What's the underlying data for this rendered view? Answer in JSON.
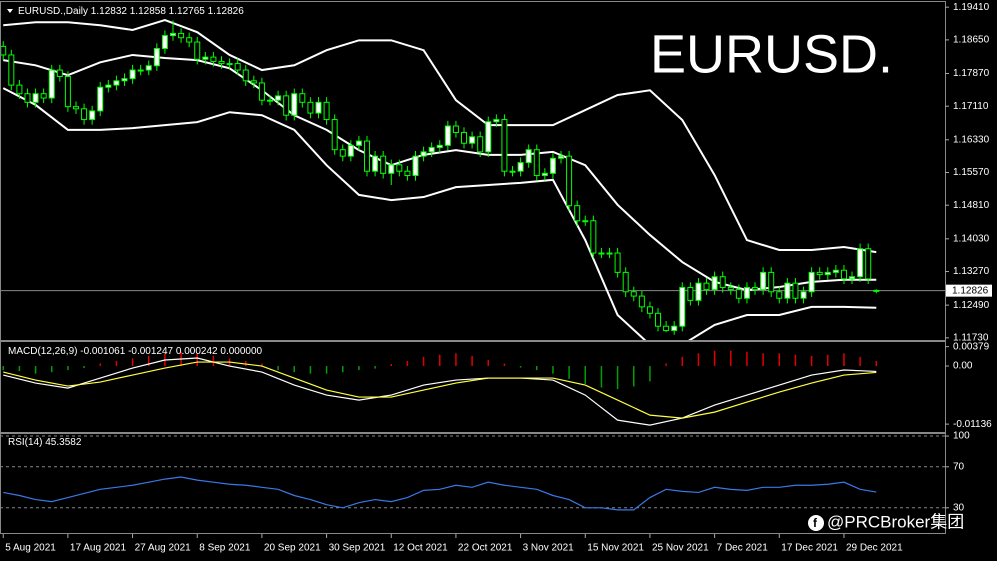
{
  "chart_data": [
    {
      "type": "candlestick",
      "title": "EURUSD.,Daily",
      "annotation": "EURUSD.",
      "xlim": [
        -0.4,
        116.5
      ],
      "ylim": [
        1.1168,
        1.1953
      ],
      "yticks": [
        {
          "value": 1.1941,
          "label": "1.19410"
        },
        {
          "value": 1.1865,
          "label": "1.18650"
        },
        {
          "value": 1.1787,
          "label": "1.17870"
        },
        {
          "value": 1.1711,
          "label": "1.17110"
        },
        {
          "value": 1.1633,
          "label": "1.16330"
        },
        {
          "value": 1.1557,
          "label": "1.15570"
        },
        {
          "value": 1.1481,
          "label": "1.14810"
        },
        {
          "value": 1.1403,
          "label": "1.14030"
        },
        {
          "value": 1.1327,
          "label": "1.13270"
        },
        {
          "value": 1.1249,
          "label": "1.12490"
        },
        {
          "value": 1.1173,
          "label": "1.11730"
        }
      ],
      "up_color": "#ffffff",
      "down_color": "#000000",
      "wick_color": "#00ff00",
      "open": [
        1.185,
        1.183,
        1.176,
        1.174,
        1.172,
        1.174,
        1.173,
        1.1795,
        1.178,
        1.171,
        1.1705,
        1.168,
        1.17,
        1.1755,
        1.176,
        1.177,
        1.1775,
        1.1795,
        1.1795,
        1.1805,
        1.1845,
        1.1875,
        1.188,
        1.187,
        1.186,
        1.182,
        1.1825,
        1.1815,
        1.181,
        1.181,
        1.1795,
        1.177,
        1.1765,
        1.1725,
        1.1725,
        1.1735,
        1.169,
        1.174,
        1.172,
        1.1695,
        1.172,
        1.168,
        1.161,
        1.1595,
        1.162,
        1.163,
        1.156,
        1.1595,
        1.1555,
        1.1575,
        1.156,
        1.155,
        1.1595,
        1.1605,
        1.1615,
        1.162,
        1.1665,
        1.165,
        1.1625,
        1.164,
        1.1605,
        1.1675,
        1.168,
        1.156,
        1.156,
        1.158,
        1.161,
        1.155,
        1.1555,
        1.159,
        1.1595,
        1.148,
        1.1445,
        1.1445,
        1.137,
        1.137,
        1.137,
        1.1325,
        1.128,
        1.127,
        1.1245,
        1.123,
        1.12,
        1.119,
        1.12,
        1.129,
        1.126,
        1.13,
        1.1285,
        1.1315,
        1.129,
        1.1285,
        1.1265,
        1.129,
        1.1285,
        1.1325,
        1.128,
        1.1265,
        1.13,
        1.1265,
        1.128,
        1.1325,
        1.132,
        1.1325,
        1.133,
        1.131,
        1.1315,
        1.138,
        1.12832
      ],
      "high": [
        1.1862,
        1.1842,
        1.1772,
        1.1752,
        1.1752,
        1.1752,
        1.1807,
        1.1807,
        1.1792,
        1.1722,
        1.1717,
        1.1712,
        1.1767,
        1.1772,
        1.1782,
        1.1787,
        1.1807,
        1.1807,
        1.1817,
        1.1857,
        1.1887,
        1.191,
        1.1892,
        1.1882,
        1.1872,
        1.1837,
        1.1837,
        1.1827,
        1.1822,
        1.1822,
        1.1807,
        1.1782,
        1.1777,
        1.1737,
        1.1747,
        1.1747,
        1.1752,
        1.1752,
        1.1732,
        1.1732,
        1.1732,
        1.1692,
        1.1622,
        1.1632,
        1.1642,
        1.1642,
        1.1607,
        1.1607,
        1.1587,
        1.1587,
        1.1572,
        1.1607,
        1.1617,
        1.1627,
        1.1632,
        1.1677,
        1.1677,
        1.1662,
        1.1652,
        1.1652,
        1.1687,
        1.1692,
        1.1692,
        1.1572,
        1.1592,
        1.1622,
        1.1622,
        1.1567,
        1.1602,
        1.1607,
        1.1607,
        1.1492,
        1.1457,
        1.1457,
        1.1382,
        1.1382,
        1.1382,
        1.1337,
        1.1292,
        1.1282,
        1.1257,
        1.1242,
        1.1212,
        1.1212,
        1.1302,
        1.1302,
        1.1312,
        1.1312,
        1.1327,
        1.1327,
        1.1302,
        1.1297,
        1.1302,
        1.1302,
        1.1337,
        1.1337,
        1.1292,
        1.1312,
        1.1312,
        1.1292,
        1.1337,
        1.1337,
        1.1337,
        1.1342,
        1.1342,
        1.1327,
        1.1392,
        1.1392,
        1.12858
      ],
      "low": [
        1.1818,
        1.1748,
        1.1728,
        1.1708,
        1.1708,
        1.1718,
        1.1718,
        1.1768,
        1.1698,
        1.1693,
        1.1668,
        1.1668,
        1.1688,
        1.1743,
        1.1748,
        1.1758,
        1.1763,
        1.1783,
        1.1783,
        1.1793,
        1.1833,
        1.1863,
        1.1858,
        1.1848,
        1.1808,
        1.1808,
        1.1803,
        1.1798,
        1.1798,
        1.1783,
        1.1758,
        1.1753,
        1.1713,
        1.1713,
        1.1713,
        1.1678,
        1.1678,
        1.1708,
        1.1683,
        1.1683,
        1.1668,
        1.1598,
        1.1583,
        1.1583,
        1.1608,
        1.1548,
        1.1548,
        1.1543,
        1.1528,
        1.1548,
        1.1538,
        1.1538,
        1.1583,
        1.1593,
        1.1603,
        1.1608,
        1.1638,
        1.1613,
        1.1613,
        1.1593,
        1.1593,
        1.1663,
        1.1548,
        1.1548,
        1.1548,
        1.1568,
        1.1538,
        1.1538,
        1.1543,
        1.1578,
        1.1468,
        1.1433,
        1.1433,
        1.1358,
        1.1358,
        1.1358,
        1.1313,
        1.1268,
        1.1258,
        1.1233,
        1.1218,
        1.1188,
        1.1186,
        1.118,
        1.1188,
        1.1248,
        1.1248,
        1.1273,
        1.1273,
        1.1278,
        1.1273,
        1.1253,
        1.1253,
        1.1273,
        1.1273,
        1.1268,
        1.1253,
        1.1253,
        1.1253,
        1.1253,
        1.1268,
        1.1308,
        1.1308,
        1.1313,
        1.1298,
        1.1298,
        1.1303,
        1.1298,
        1.12765
      ],
      "close": [
        1.183,
        1.176,
        1.174,
        1.172,
        1.174,
        1.173,
        1.1795,
        1.178,
        1.171,
        1.1705,
        1.168,
        1.17,
        1.1755,
        1.176,
        1.177,
        1.1775,
        1.1795,
        1.1795,
        1.1805,
        1.1845,
        1.1875,
        1.188,
        1.187,
        1.186,
        1.182,
        1.1825,
        1.1815,
        1.181,
        1.181,
        1.1795,
        1.177,
        1.1765,
        1.1725,
        1.1725,
        1.1735,
        1.169,
        1.174,
        1.172,
        1.1695,
        1.172,
        1.168,
        1.161,
        1.1595,
        1.162,
        1.163,
        1.156,
        1.1595,
        1.1555,
        1.1575,
        1.156,
        1.155,
        1.1595,
        1.1605,
        1.1615,
        1.162,
        1.1665,
        1.165,
        1.1625,
        1.164,
        1.1605,
        1.1675,
        1.168,
        1.156,
        1.156,
        1.158,
        1.161,
        1.155,
        1.1555,
        1.159,
        1.1595,
        1.148,
        1.1445,
        1.1445,
        1.137,
        1.137,
        1.137,
        1.1325,
        1.128,
        1.127,
        1.1245,
        1.123,
        1.12,
        1.119,
        1.12,
        1.129,
        1.126,
        1.13,
        1.1285,
        1.1315,
        1.129,
        1.1285,
        1.1265,
        1.129,
        1.1285,
        1.1325,
        1.128,
        1.1265,
        1.13,
        1.1265,
        1.128,
        1.1325,
        1.132,
        1.1325,
        1.133,
        1.131,
        1.1315,
        1.138,
        1.131,
        1.12826
      ],
      "bands": {
        "x": [
          0,
          4,
          8,
          12,
          16,
          20,
          24,
          28,
          32,
          36,
          40,
          44,
          48,
          52,
          56,
          60,
          64,
          68,
          72,
          76,
          80,
          84,
          88,
          92,
          96,
          100,
          104,
          108
        ],
        "series": [
          {
            "color": "#ffffff",
            "values": [
              1.1899,
              1.1906,
              1.1906,
              1.1899,
              1.1888,
              1.1911,
              1.1883,
              1.183,
              1.1795,
              1.1806,
              1.1841,
              1.1864,
              1.1864,
              1.1841,
              1.1725,
              1.1667,
              1.1667,
              1.1667,
              1.1702,
              1.1737,
              1.1748,
              1.1679,
              1.1551,
              1.14,
              1.1377,
              1.1377,
              1.1384,
              1.1372
            ]
          },
          {
            "color": "#ffffff",
            "values": [
              1.1818,
              1.1806,
              1.1783,
              1.1813,
              1.183,
              1.1823,
              1.1818,
              1.1799,
              1.1748,
              1.169,
              1.1656,
              1.1609,
              1.1574,
              1.1598,
              1.1609,
              1.1598,
              1.1598,
              1.1605,
              1.1574,
              1.1482,
              1.1412,
              1.1349,
              1.1303,
              1.1284,
              1.1291,
              1.1303,
              1.1308,
              1.1308
            ]
          },
          {
            "color": "#ffffff",
            "values": [
              1.1753,
              1.1714,
              1.1656,
              1.1656,
              1.166,
              1.1667,
              1.1674,
              1.1697,
              1.169,
              1.1656,
              1.1574,
              1.1505,
              1.1493,
              1.15,
              1.1523,
              1.1528,
              1.1533,
              1.154,
              1.14,
              1.1226,
              1.1157,
              1.1157,
              1.1203,
              1.1226,
              1.1226,
              1.1245,
              1.1245,
              1.1243
            ]
          }
        ]
      }
    },
    {
      "type": "histogram",
      "title": "MACD(12,26,9)",
      "header_values": [
        -0.001061,
        -0.001247,
        0.000242,
        {
          "value": 0,
          "label": "0.000000"
        }
      ],
      "xlim": [
        -0.4,
        116.5
      ],
      "ylim": [
        -0.0129,
        0.0047
      ],
      "yticks": [
        0.00379,
        {
          "value": 0,
          "label": "0.00"
        },
        -0.01136
      ],
      "up_color": "#e00000",
      "down_color": "#00a000",
      "x": [
        0,
        2,
        4,
        6,
        8,
        10,
        12,
        14,
        16,
        18,
        20,
        22,
        24,
        26,
        28,
        30,
        32,
        34,
        36,
        38,
        40,
        42,
        44,
        46,
        48,
        50,
        52,
        54,
        56,
        58,
        60,
        62,
        64,
        66,
        68,
        70,
        72,
        74,
        76,
        78,
        80,
        82,
        84,
        86,
        88,
        90,
        92,
        94,
        96,
        98,
        100,
        102,
        104,
        106,
        108
      ],
      "values": [
        -0.0008,
        -0.001,
        -0.0015,
        -0.0012,
        -0.0008,
        -0.0004,
        0.0005,
        0.001,
        0.0015,
        0.002,
        0.0025,
        0.0028,
        0.0025,
        0.002,
        0.0015,
        0.001,
        0.0005,
        -0.0008,
        -0.0012,
        -0.0015,
        -0.0015,
        -0.0012,
        -0.0008,
        -0.0005,
        0.0004,
        0.001,
        0.0018,
        0.0022,
        0.0025,
        0.002,
        0.0012,
        0.0005,
        -0.0003,
        -0.0008,
        -0.0015,
        -0.0025,
        -0.0035,
        -0.0042,
        -0.0045,
        -0.004,
        -0.003,
        0.0005,
        0.0018,
        0.0025,
        0.003,
        0.003,
        0.0028,
        0.0025,
        0.0025,
        0.0022,
        0.002,
        0.0022,
        0.0025,
        0.0018,
        0.001
      ],
      "lines": {
        "x": [
          0,
          4,
          8,
          12,
          16,
          20,
          24,
          28,
          32,
          36,
          40,
          44,
          48,
          52,
          56,
          60,
          64,
          68,
          72,
          76,
          80,
          84,
          88,
          92,
          96,
          100,
          104,
          108
        ],
        "series": [
          {
            "color": "#ffffff",
            "values": [
              -0.00176,
              -0.00333,
              -0.00431,
              -0.00235,
              -0.00039,
              0.00118,
              0.00157,
              0,
              -0.00118,
              -0.00372,
              -0.00568,
              -0.00666,
              -0.00568,
              -0.00372,
              -0.00274,
              -0.00235,
              -0.00235,
              -0.00274,
              -0.00568,
              -0.01058,
              -0.01156,
              -0.01018,
              -0.00764,
              -0.00568,
              -0.00372,
              -0.00176,
              -0.00078,
              -0.00106
            ]
          },
          {
            "color": "#ffff40",
            "values": [
              -0.00118,
              -0.00274,
              -0.00392,
              -0.00313,
              -0.00176,
              -0.00039,
              0.00078,
              0.00078,
              0,
              -0.00235,
              -0.0047,
              -0.00607,
              -0.00607,
              -0.0047,
              -0.00333,
              -0.00235,
              -0.00235,
              -0.00235,
              -0.00372,
              -0.00666,
              -0.0096,
              -0.01018,
              -0.00901,
              -0.00705,
              -0.00509,
              -0.00333,
              -0.00176,
              -0.00125
            ]
          }
        ]
      }
    },
    {
      "type": "line",
      "title": "RSI(14)",
      "color": "#3a78e8",
      "grid": "dashed",
      "xlim": [
        -0.4,
        116.5
      ],
      "ylim": [
        5.4,
        102
      ],
      "yticks": [
        100,
        70,
        30
      ],
      "x": [
        0,
        2,
        4,
        6,
        8,
        10,
        12,
        14,
        16,
        18,
        20,
        22,
        24,
        26,
        28,
        30,
        32,
        34,
        36,
        38,
        40,
        42,
        44,
        46,
        48,
        50,
        52,
        54,
        56,
        58,
        60,
        62,
        64,
        66,
        68,
        70,
        72,
        74,
        76,
        78,
        80,
        82,
        84,
        86,
        88,
        90,
        92,
        94,
        96,
        98,
        100,
        102,
        104,
        106,
        108
      ],
      "values": [
        45,
        42,
        38,
        36,
        40,
        44,
        48,
        50,
        52,
        55,
        58,
        60,
        57,
        55,
        53,
        52,
        50,
        48,
        42,
        38,
        33,
        30,
        35,
        38,
        36,
        40,
        47,
        48,
        52,
        50,
        55,
        52,
        50,
        48,
        42,
        38,
        30,
        30,
        28,
        28,
        40,
        48,
        46,
        45,
        50,
        48,
        47,
        50,
        50,
        52,
        52,
        53,
        55,
        48,
        45.3582
      ],
      "xticks": [
        {
          "value": 0,
          "label": "5 Aug 2021"
        },
        {
          "value": 8,
          "label": "17 Aug 2021"
        },
        {
          "value": 16,
          "label": "27 Aug 2021"
        },
        {
          "value": 24,
          "label": "8 Sep 2021"
        },
        {
          "value": 32,
          "label": "20 Sep 2021"
        },
        {
          "value": 40,
          "label": "30 Sep 2021"
        },
        {
          "value": 48,
          "label": "12 Oct 2021"
        },
        {
          "value": 56,
          "label": "22 Oct 2021"
        },
        {
          "value": 64,
          "label": "3 Nov 2021"
        },
        {
          "value": 72,
          "label": "15 Nov 2021"
        },
        {
          "value": 80,
          "label": "25 Nov 2021"
        },
        {
          "value": 88,
          "label": "7 Dec 2021"
        },
        {
          "value": 96,
          "label": "17 Dec 2021"
        },
        {
          "value": 104,
          "label": "29 Dec 2021"
        }
      ]
    }
  ],
  "watermark": "@PRCBroker集团"
}
